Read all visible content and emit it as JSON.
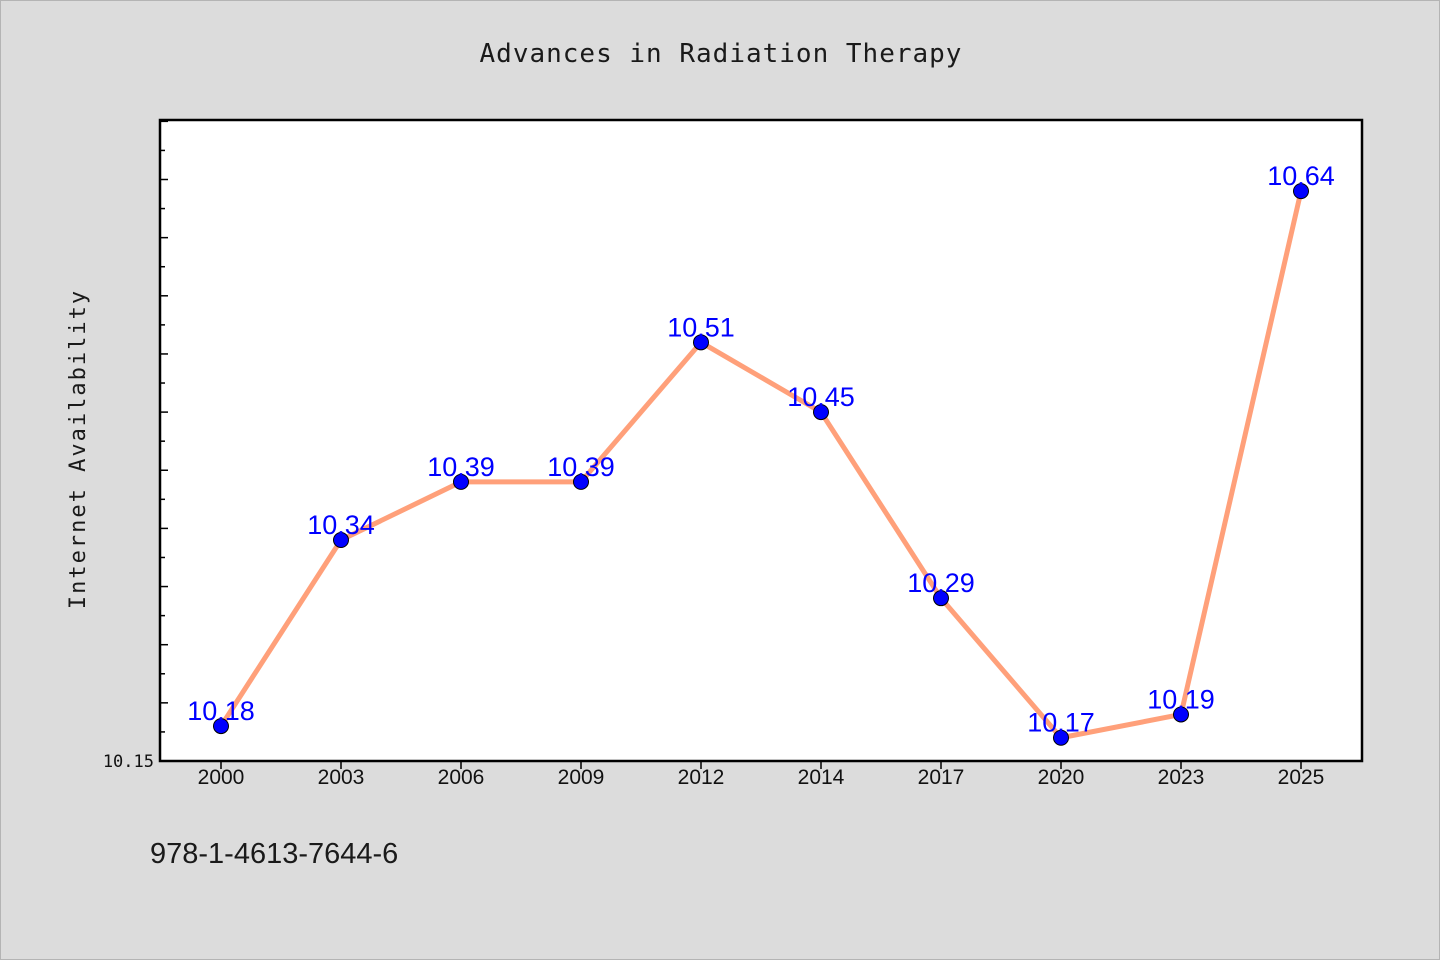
{
  "chart_data": {
    "type": "line",
    "title": "Advances in Radiation Therapy",
    "xlabel": "",
    "ylabel": "Internet Availability",
    "categories": [
      "2000",
      "2003",
      "2006",
      "2009",
      "2012",
      "2014",
      "2017",
      "2020",
      "2023",
      "2025"
    ],
    "series": [
      {
        "values": [
          10.18,
          10.34,
          10.39,
          10.39,
          10.51,
          10.45,
          10.29,
          10.17,
          10.19,
          10.64
        ]
      }
    ],
    "data_labels": [
      "10.18",
      "10.34",
      "10.39",
      "10.39",
      "10.51",
      "10.45",
      "10.29",
      "10.17",
      "10.19",
      "10.64"
    ],
    "ylim": [
      10.15,
      10.7
    ],
    "y_tick_labels": [
      "10.15"
    ],
    "grid": false,
    "legend": "none",
    "colors": {
      "line": "#ffa07a",
      "marker": "#0000ff",
      "data_label": "#0000ff",
      "background": "#dcdcdc",
      "plot_background": "#ffffff"
    }
  },
  "footnote": "978-1-4613-7644-6"
}
